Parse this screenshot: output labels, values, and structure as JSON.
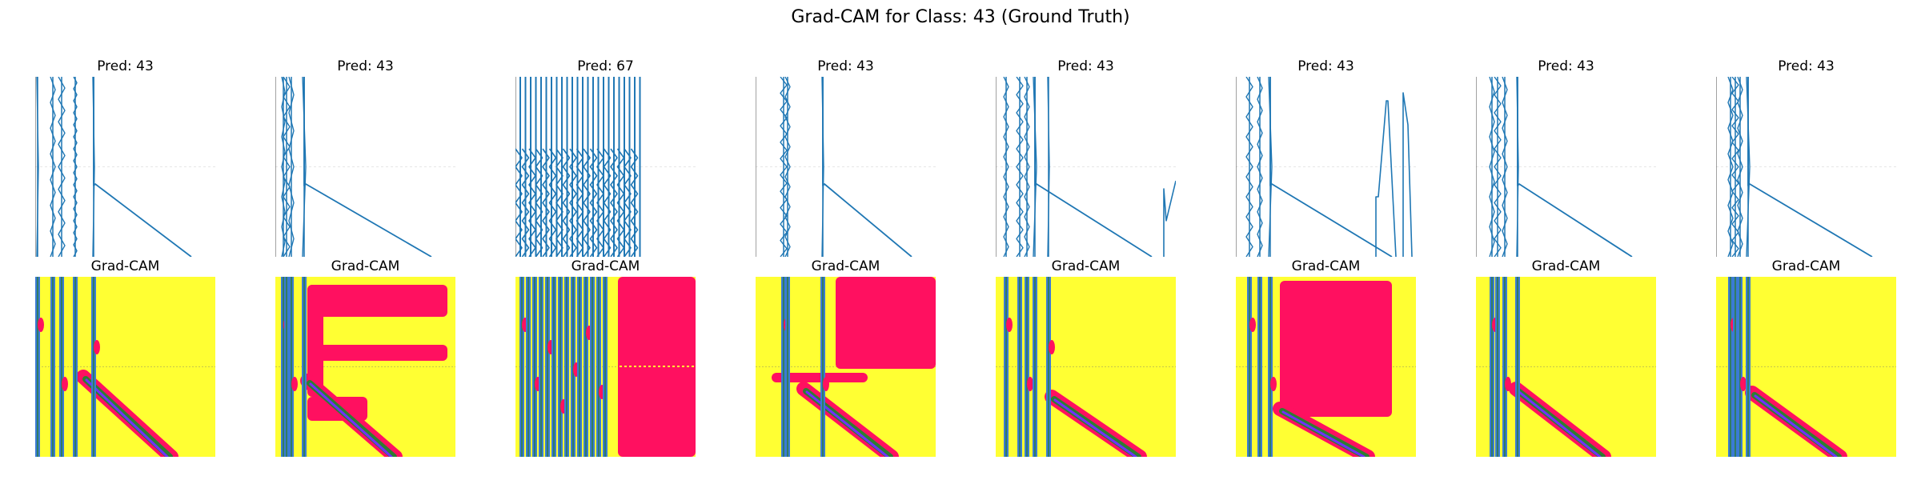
{
  "figure": {
    "title": "Grad-CAM for Class: 43 (Ground Truth)"
  },
  "colors": {
    "signal_line": "#1f77b4",
    "heatmap_background": "#ffff33",
    "heatmap_hot": "#ff1060",
    "heatmap_mid": "#2e7d32",
    "heatmap_cool": "#3a7bd5",
    "heatmap_core": "#7030ff",
    "heatmap_peak": "#40d0ff",
    "grid": "#e6e6e6"
  },
  "chart_data": [
    {
      "type": "line",
      "panel": 1,
      "row": "signal",
      "title": "Pred: 43"
    },
    {
      "type": "line",
      "panel": 2,
      "row": "signal",
      "title": "Pred: 43"
    },
    {
      "type": "line",
      "panel": 3,
      "row": "signal",
      "title": "Pred: 67"
    },
    {
      "type": "line",
      "panel": 4,
      "row": "signal",
      "title": "Pred: 43"
    },
    {
      "type": "line",
      "panel": 5,
      "row": "signal",
      "title": "Pred: 43"
    },
    {
      "type": "line",
      "panel": 6,
      "row": "signal",
      "title": "Pred: 43"
    },
    {
      "type": "line",
      "panel": 7,
      "row": "signal",
      "title": "Pred: 43"
    },
    {
      "type": "line",
      "panel": 8,
      "row": "signal",
      "title": "Pred: 43"
    },
    {
      "type": "heatmap",
      "panel": 1,
      "row": "gradcam",
      "title": "Grad-CAM"
    },
    {
      "type": "heatmap",
      "panel": 2,
      "row": "gradcam",
      "title": "Grad-CAM"
    },
    {
      "type": "heatmap",
      "panel": 3,
      "row": "gradcam",
      "title": "Grad-CAM"
    },
    {
      "type": "heatmap",
      "panel": 4,
      "row": "gradcam",
      "title": "Grad-CAM"
    },
    {
      "type": "heatmap",
      "panel": 5,
      "row": "gradcam",
      "title": "Grad-CAM"
    },
    {
      "type": "heatmap",
      "panel": 6,
      "row": "gradcam",
      "title": "Grad-CAM"
    },
    {
      "type": "heatmap",
      "panel": 7,
      "row": "gradcam",
      "title": "Grad-CAM"
    },
    {
      "type": "heatmap",
      "panel": 8,
      "row": "gradcam",
      "title": "Grad-CAM"
    }
  ]
}
